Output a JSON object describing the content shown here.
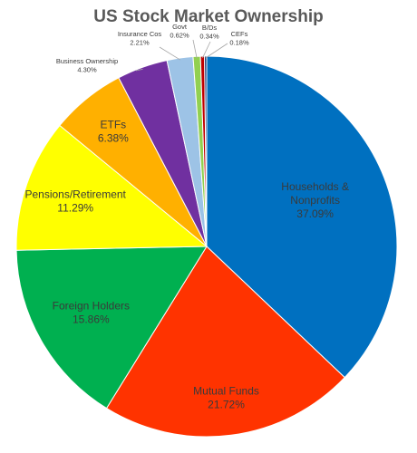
{
  "chart_data": {
    "type": "pie",
    "title": "US Stock Market Ownership",
    "start_angle_deg": 0,
    "direction": "clockwise",
    "slices": [
      {
        "name": "Households & Nonprofits",
        "label_lines": [
          "Households &",
          "Nonprofits"
        ],
        "value": 37.09,
        "value_label": "37.09%",
        "color": "#0070C0"
      },
      {
        "name": "Mutual Funds",
        "label_lines": [
          "Mutual Funds"
        ],
        "value": 21.72,
        "value_label": "21.72%",
        "color": "#FF3300"
      },
      {
        "name": "Foreign Holders",
        "label_lines": [
          "Foreign Holders"
        ],
        "value": 15.86,
        "value_label": "15.86%",
        "color": "#00B050"
      },
      {
        "name": "Pensions/Retirement",
        "label_lines": [
          "Pensions/Retirement"
        ],
        "value": 11.29,
        "value_label": "11.29%",
        "color": "#FFFF00"
      },
      {
        "name": "ETFs",
        "label_lines": [
          "ETFs"
        ],
        "value": 6.38,
        "value_label": "6.38%",
        "color": "#FFB000"
      },
      {
        "name": "Business Ownership",
        "label_lines": [
          "Business Ownership"
        ],
        "value": 4.3,
        "value_label": "4.30%",
        "color": "#7030A0"
      },
      {
        "name": "Insurance Cos",
        "label_lines": [
          "Insurance Cos"
        ],
        "value": 2.21,
        "value_label": "2.21%",
        "color": "#9DC3E6"
      },
      {
        "name": "Govt",
        "label_lines": [
          "Govt"
        ],
        "value": 0.62,
        "value_label": "0.62%",
        "color": "#92D050"
      },
      {
        "name": "B/Ds",
        "label_lines": [
          "B/Ds"
        ],
        "value": 0.34,
        "value_label": "0.34%",
        "color": "#C00000"
      },
      {
        "name": "CEFs",
        "label_lines": [
          "CEFs"
        ],
        "value": 0.18,
        "value_label": "0.18%",
        "color": "#002060"
      }
    ]
  }
}
